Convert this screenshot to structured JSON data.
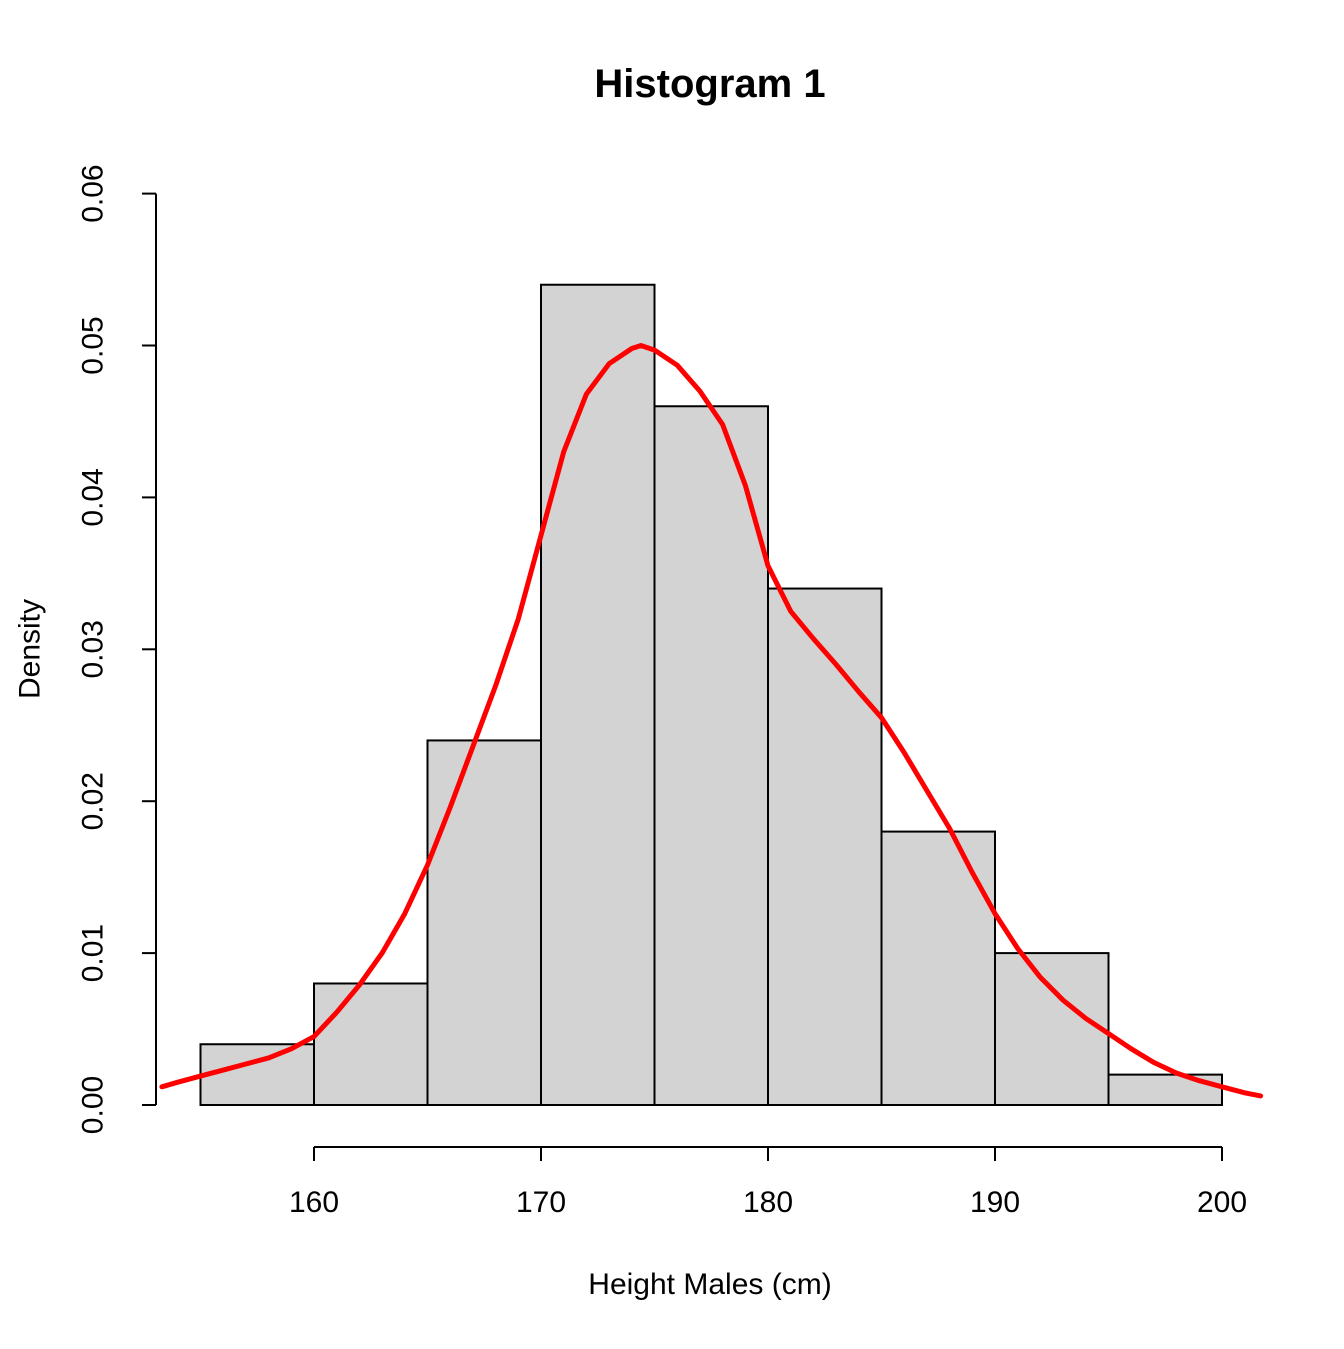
{
  "chart_data": {
    "type": "histogram",
    "title": "Histogram 1",
    "xlabel": "Height Males (cm)",
    "ylabel": "Density",
    "x_axis": {
      "tick_values": [
        160,
        170,
        180,
        190,
        200
      ],
      "tick_labels": [
        "160",
        "170",
        "180",
        "190",
        "200"
      ],
      "shown_range": [
        153.2,
        201.8
      ]
    },
    "y_axis": {
      "tick_values": [
        0,
        0.01,
        0.02,
        0.03,
        0.04,
        0.05,
        0.06
      ],
      "tick_labels": [
        "0.00",
        "0.01",
        "0.02",
        "0.03",
        "0.04",
        "0.05",
        "0.06"
      ],
      "shown_range": [
        0,
        0.06
      ]
    },
    "bin_width": 5,
    "bins": [
      {
        "from": 155,
        "to": 160,
        "density": 0.004
      },
      {
        "from": 160,
        "to": 165,
        "density": 0.008
      },
      {
        "from": 165,
        "to": 170,
        "density": 0.024
      },
      {
        "from": 170,
        "to": 175,
        "density": 0.054
      },
      {
        "from": 175,
        "to": 180,
        "density": 0.046
      },
      {
        "from": 180,
        "to": 185,
        "density": 0.034
      },
      {
        "from": 185,
        "to": 190,
        "density": 0.018
      },
      {
        "from": 190,
        "to": 195,
        "density": 0.01
      },
      {
        "from": 195,
        "to": 200,
        "density": 0.002
      }
    ],
    "density_curve": {
      "color": "#ff0000",
      "peak": {
        "x": 174.4,
        "density": 0.05
      },
      "points": [
        [
          153.3,
          0.0012
        ],
        [
          154,
          0.0015
        ],
        [
          155,
          0.0019
        ],
        [
          156,
          0.0023
        ],
        [
          157,
          0.0027
        ],
        [
          158,
          0.0031
        ],
        [
          159,
          0.0037
        ],
        [
          160,
          0.0045
        ],
        [
          161,
          0.0061
        ],
        [
          162,
          0.0079
        ],
        [
          163,
          0.01
        ],
        [
          164,
          0.0126
        ],
        [
          165,
          0.0158
        ],
        [
          166,
          0.0196
        ],
        [
          167,
          0.0236
        ],
        [
          168,
          0.0276
        ],
        [
          169,
          0.032
        ],
        [
          170,
          0.0375
        ],
        [
          171,
          0.043
        ],
        [
          172,
          0.0468
        ],
        [
          173,
          0.0488
        ],
        [
          174,
          0.0498
        ],
        [
          174.4,
          0.05
        ],
        [
          175,
          0.0497
        ],
        [
          176,
          0.0487
        ],
        [
          177,
          0.047
        ],
        [
          178,
          0.0448
        ],
        [
          179,
          0.0408
        ],
        [
          180,
          0.0355
        ],
        [
          181,
          0.0325
        ],
        [
          182,
          0.0307
        ],
        [
          183,
          0.029
        ],
        [
          184,
          0.0272
        ],
        [
          185,
          0.0255
        ],
        [
          186,
          0.0232
        ],
        [
          187,
          0.0207
        ],
        [
          188,
          0.0182
        ],
        [
          189,
          0.0153
        ],
        [
          190,
          0.0126
        ],
        [
          191,
          0.0103
        ],
        [
          192,
          0.0084
        ],
        [
          193,
          0.0069
        ],
        [
          194,
          0.0057
        ],
        [
          195,
          0.0047
        ],
        [
          196,
          0.0037
        ],
        [
          197,
          0.0028
        ],
        [
          198,
          0.0021
        ],
        [
          199,
          0.0016
        ],
        [
          200,
          0.0012
        ],
        [
          201,
          0.0008
        ],
        [
          201.7,
          0.0006
        ]
      ]
    },
    "colors": {
      "bar_fill": "#d3d3d3",
      "bar_border": "#000000",
      "axis": "#000000",
      "text": "#000000",
      "background": "#ffffff"
    }
  }
}
